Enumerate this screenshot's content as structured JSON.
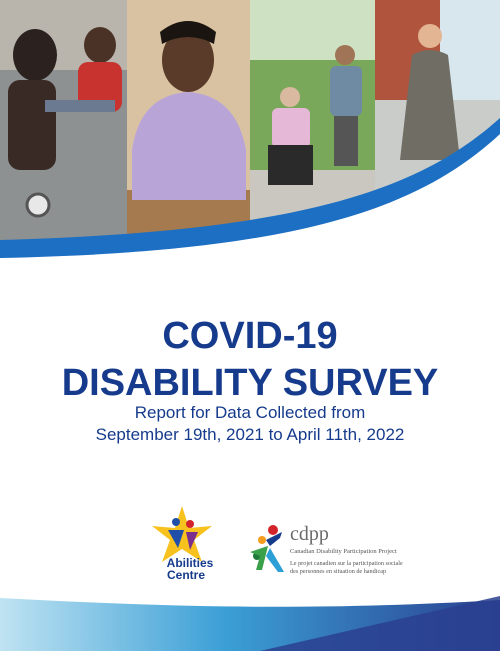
{
  "title": {
    "line1": "COVID-19",
    "line2": "DISABILITY SURVEY"
  },
  "subtitle": {
    "line1": "Report for Data Collected from",
    "line2": "September 19th, 2021 to April 11th, 2022"
  },
  "logos": {
    "abilities": {
      "line1": "Abilities",
      "line2": "Centre"
    },
    "cdpp": {
      "acronym": "cdpp",
      "english": "Canadian Disability Participation Project",
      "french1": "Le projet canadien sur la participation sociale",
      "french2": "des personnes en situation de handicap"
    }
  }
}
